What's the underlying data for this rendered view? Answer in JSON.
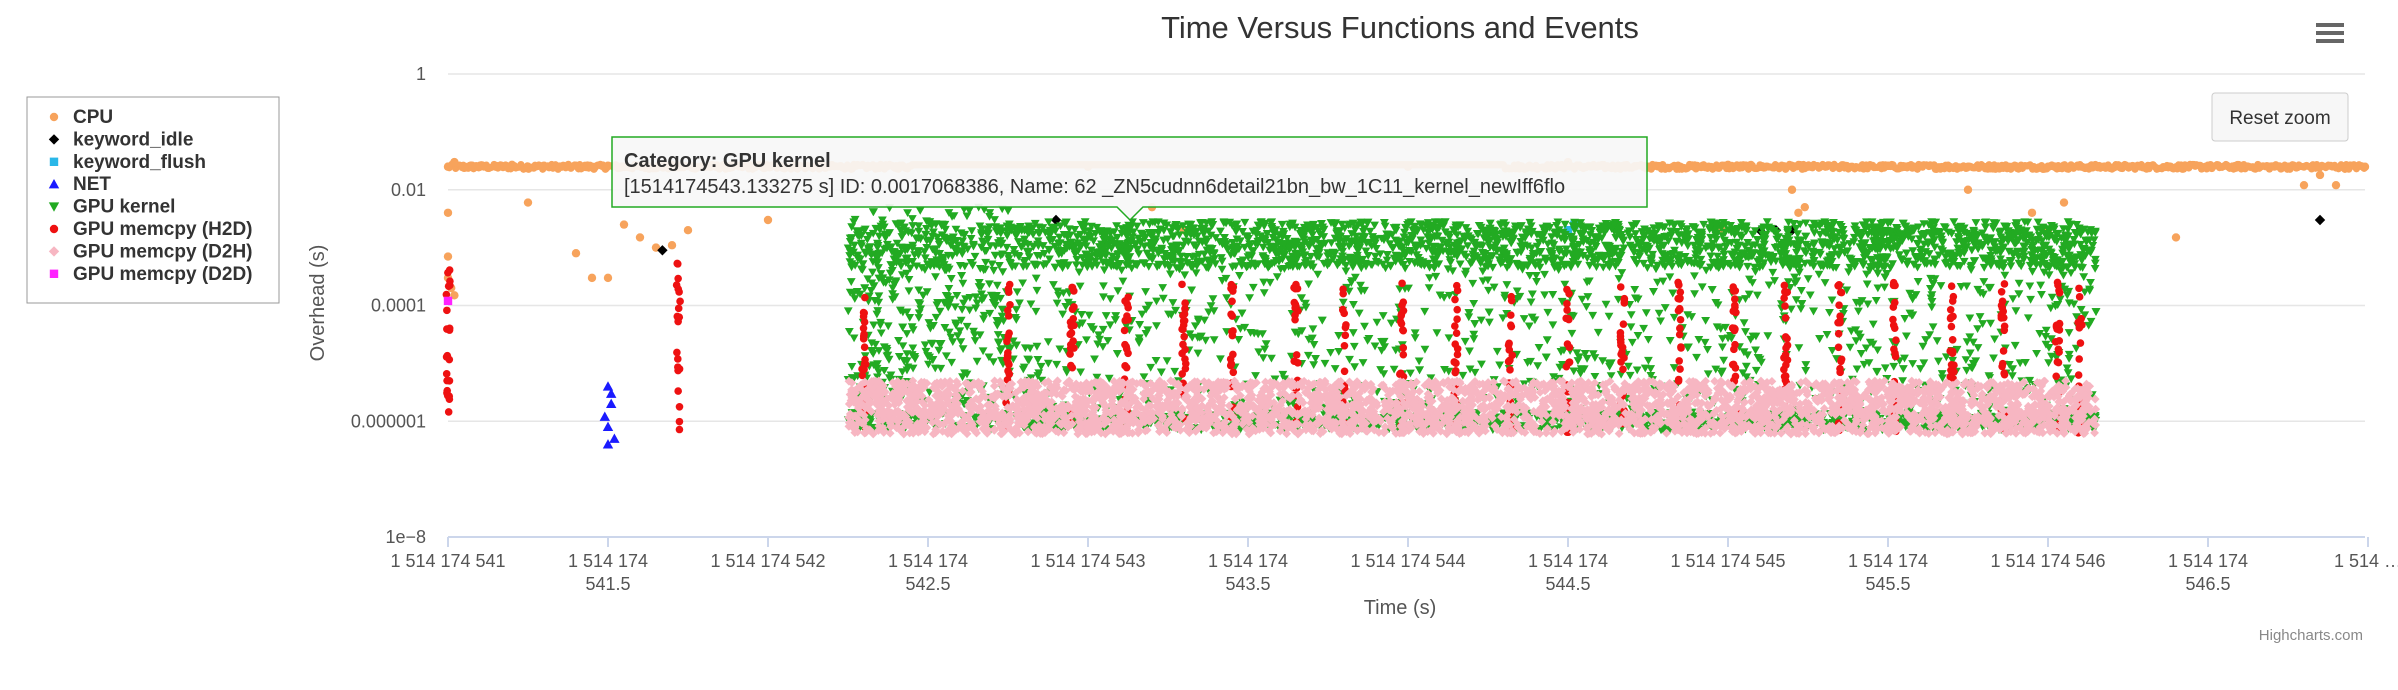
{
  "chart_data": {
    "type": "scatter",
    "title": "Time Versus Functions and Events",
    "xlabel": "Time (s)",
    "ylabel": "Overhead (s)",
    "xlim": [
      1514174540.99,
      1514174547.0
    ],
    "ylim": [
      1e-08,
      1
    ],
    "yscale": "log",
    "yticks": [
      {
        "value": 1,
        "label": "1"
      },
      {
        "value": 0.01,
        "label": "0.01"
      },
      {
        "value": 0.0001,
        "label": "0.0001"
      },
      {
        "value": 1e-06,
        "label": "0.000001"
      },
      {
        "value": 1e-08,
        "label": "1e−8"
      }
    ],
    "xticks": [
      {
        "value": 1514174541.0,
        "lines": [
          "1 514 174 541"
        ]
      },
      {
        "value": 1514174541.5,
        "lines": [
          "1 514 174",
          "541.5"
        ]
      },
      {
        "value": 1514174542.0,
        "lines": [
          "1 514 174 542"
        ]
      },
      {
        "value": 1514174542.5,
        "lines": [
          "1 514 174",
          "542.5"
        ]
      },
      {
        "value": 1514174543.0,
        "lines": [
          "1 514 174 543"
        ]
      },
      {
        "value": 1514174543.5,
        "lines": [
          "1 514 174",
          "543.5"
        ]
      },
      {
        "value": 1514174544.0,
        "lines": [
          "1 514 174 544"
        ]
      },
      {
        "value": 1514174544.5,
        "lines": [
          "1 514 174",
          "544.5"
        ]
      },
      {
        "value": 1514174545.0,
        "lines": [
          "1 514 174 545"
        ]
      },
      {
        "value": 1514174545.5,
        "lines": [
          "1 514 174",
          "545.5"
        ]
      },
      {
        "value": 1514174546.0,
        "lines": [
          "1 514 174 546"
        ]
      },
      {
        "value": 1514174546.5,
        "lines": [
          "1 514 174",
          "546.5"
        ]
      },
      {
        "value": 1514174547.0,
        "lines": [
          "1 514 …"
        ]
      }
    ],
    "grid": true,
    "legend_position": "left",
    "series": [
      {
        "name": "CPU",
        "color": "#f7a35c",
        "marker": "circle",
        "points": [
          [
            1514174541.0,
            0.025
          ],
          [
            1514174541.02,
            0.03
          ],
          [
            1514174541.05,
            0.024
          ],
          [
            1514174541.1,
            0.026
          ],
          [
            1514174541.15,
            0.025
          ],
          [
            1514174541.2,
            0.027
          ],
          [
            1514174541.25,
            0.025
          ],
          [
            1514174541.3,
            0.026
          ],
          [
            1514174541.35,
            0.025
          ],
          [
            1514174541.4,
            0.026
          ],
          [
            1514174541.45,
            0.025
          ],
          [
            1514174541.5,
            0.026
          ],
          [
            1514174541.55,
            0.025
          ],
          [
            1514174541.6,
            0.026
          ],
          [
            1514174541.65,
            0.024
          ],
          [
            1514174542.0,
            0.003
          ],
          [
            1514174541.25,
            0.006
          ],
          [
            1514174541.4,
            0.0008
          ],
          [
            1514174541.45,
            0.0003
          ],
          [
            1514174541.5,
            0.0003
          ],
          [
            1514174541.55,
            0.0025
          ],
          [
            1514174541.6,
            0.0015
          ],
          [
            1514174541.65,
            0.001
          ],
          [
            1514174541.7,
            0.0011
          ],
          [
            1514174541.75,
            0.002
          ],
          [
            1514174541.0,
            0.004
          ],
          [
            1514174541.0,
            0.0007
          ],
          [
            1514174541.0,
            0.0003
          ],
          [
            1514174541.01,
            0.0002
          ],
          [
            1514174541.02,
            0.00015
          ],
          [
            1514174542.35,
            0.025
          ],
          [
            1514174543.0,
            0.025
          ],
          [
            1514174543.2,
            0.005
          ],
          [
            1514174543.3,
            0.002
          ],
          [
            1514174544.0,
            0.025
          ],
          [
            1514174544.5,
            0.03
          ],
          [
            1514174544.75,
            0.025
          ],
          [
            1514174545.0,
            0.027
          ],
          [
            1514174545.25,
            0.025
          ],
          [
            1514174545.5,
            0.026
          ],
          [
            1514174545.75,
            0.025
          ],
          [
            1514174546.0,
            0.025
          ],
          [
            1514174546.25,
            0.025
          ],
          [
            1514174546.5,
            0.026
          ],
          [
            1514174546.75,
            0.025
          ],
          [
            1514174547.0,
            0.025
          ],
          [
            1514174545.2,
            0.01
          ],
          [
            1514174545.22,
            0.004
          ],
          [
            1514174545.24,
            0.005
          ],
          [
            1514174545.95,
            0.004
          ],
          [
            1514174546.0,
            0.002
          ],
          [
            1514174546.05,
            0.006
          ],
          [
            1514174546.4,
            0.0015
          ],
          [
            1514174546.8,
            0.012
          ],
          [
            1514174546.85,
            0.018
          ],
          [
            1514174546.9,
            0.012
          ],
          [
            1514174545.75,
            0.01
          ],
          [
            1514174544.98,
            0.002
          ]
        ]
      },
      {
        "name": "keyword_idle",
        "color": "#000000",
        "marker": "diamond",
        "points": [
          [
            1514174541.67,
            0.0009
          ],
          [
            1514174542.9,
            0.003
          ],
          [
            1514174545.1,
            0.002
          ],
          [
            1514174545.15,
            0.002
          ],
          [
            1514174545.2,
            0.002
          ],
          [
            1514174546.1,
            0.002
          ],
          [
            1514174546.85,
            0.003
          ]
        ]
      },
      {
        "name": "keyword_flush",
        "color": "#2ab7e8",
        "marker": "square",
        "points": [
          [
            1514174544.52,
            0.0025
          ],
          [
            1514174544.5,
            0.002
          ]
        ]
      },
      {
        "name": "NET",
        "color": "#1a1aff",
        "marker": "triangle",
        "points": [
          [
            1514174541.5,
            4e-06
          ],
          [
            1514174541.51,
            2e-06
          ],
          [
            1514174541.49,
            1.2e-06
          ],
          [
            1514174541.5,
            8e-07
          ],
          [
            1514174541.52,
            5e-07
          ],
          [
            1514174541.5,
            4e-07
          ],
          [
            1514174541.51,
            3e-06
          ]
        ]
      },
      {
        "name": "GPU kernel",
        "color": "#22aa22",
        "marker": "triangle-down",
        "bands": [
          {
            "x0": 1514174542.25,
            "x1": 1514174546.15,
            "ymin": 8e-07,
            "ymax": 0.002
          }
        ]
      },
      {
        "name": "GPU memcpy (H2D)",
        "color": "#ee1111",
        "marker": "circle",
        "spikes": [
          1514174541.0,
          1514174541.72,
          1514174542.3,
          1514174542.75,
          1514174542.95,
          1514174543.12,
          1514174543.3,
          1514174543.45,
          1514174543.65,
          1514174543.8,
          1514174543.98,
          1514174544.15,
          1514174544.32,
          1514174544.5,
          1514174544.67,
          1514174544.85,
          1514174545.02,
          1514174545.18,
          1514174545.35,
          1514174545.52,
          1514174545.7,
          1514174545.86,
          1514174546.03,
          1514174546.1
        ]
      },
      {
        "name": "GPU memcpy (D2H)",
        "color": "#f7b6c2",
        "marker": "diamond",
        "bands": [
          {
            "x0": 1514174542.25,
            "x1": 1514174546.15,
            "ymin": 6e-07,
            "ymax": 5e-06
          }
        ]
      },
      {
        "name": "GPU memcpy (D2D)",
        "color": "#ff22ff",
        "marker": "square",
        "points": [
          [
            1514174541.0,
            0.00012
          ]
        ]
      }
    ],
    "tooltip": {
      "title": "Category: GPU kernel",
      "body": "[1514174543.133275 s] ID: 0.0017068386, Name: 62 _ZN5cudnn6detail21bn_bw_1C11_kernel_newIff6flo"
    }
  },
  "ui": {
    "reset_zoom_label": "Reset zoom",
    "menu_icon": "hamburger-menu-icon",
    "credits": "Highcharts.com"
  }
}
